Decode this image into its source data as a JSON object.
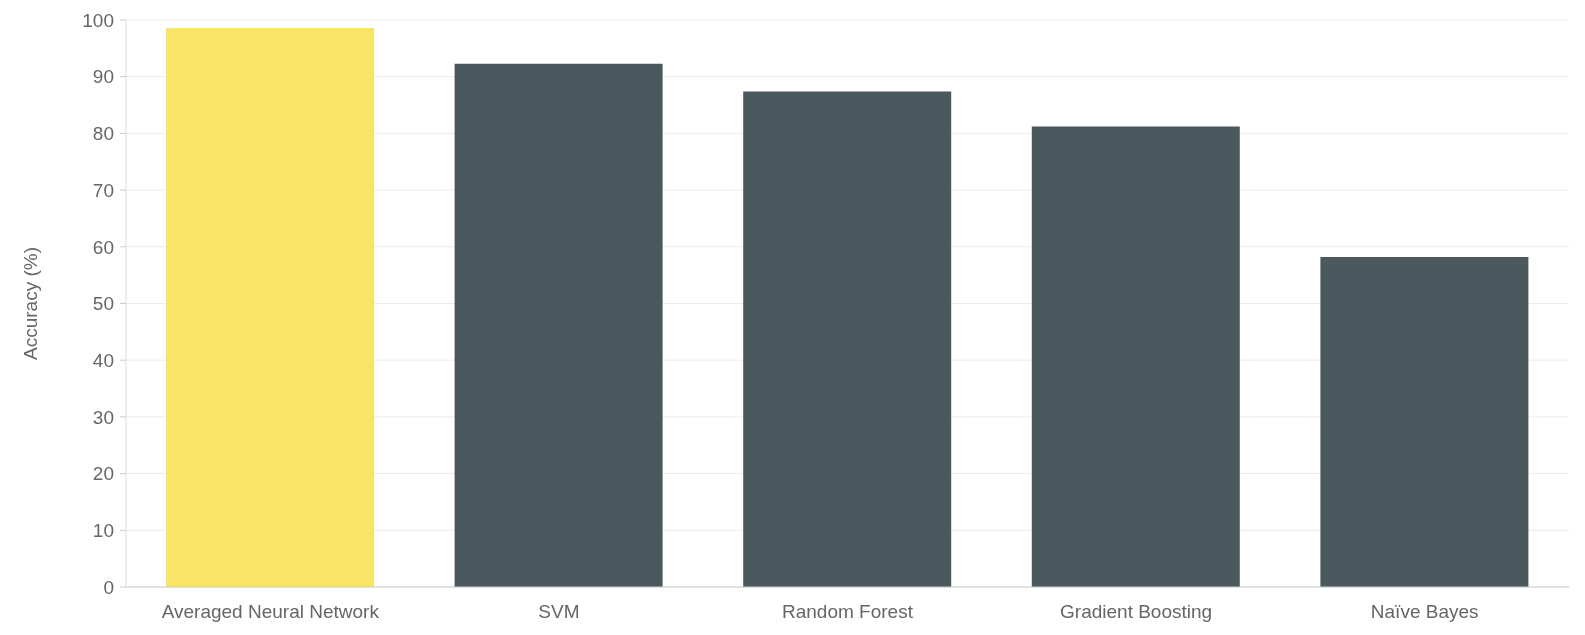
{
  "chart_data": {
    "type": "bar",
    "ylabel": "Accuracy (%)",
    "categories": [
      "Averaged Neural Network",
      "SVM",
      "Random Forest",
      "Gradient Boosting",
      "Naïve Bayes"
    ],
    "values": [
      98.6,
      92.3,
      87.4,
      81.2,
      58.2
    ],
    "colors": [
      "#f9e46a",
      "#4b585e",
      "#4b585e",
      "#4b585e",
      "#4b585e"
    ],
    "ylim": [
      0,
      100
    ],
    "yticks": [
      0,
      10,
      20,
      30,
      40,
      50,
      60,
      70,
      80,
      90,
      100
    ],
    "grid": "y"
  }
}
